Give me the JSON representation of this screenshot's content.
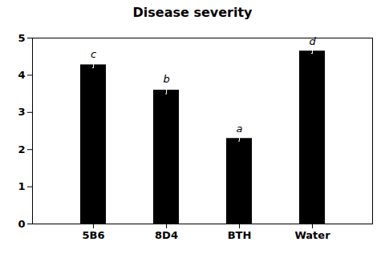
{
  "chart_data": {
    "type": "bar",
    "title": "Disease severity",
    "categories": [
      "5B6",
      "8D4",
      "BTH",
      "Water"
    ],
    "values": [
      4.28,
      3.6,
      2.3,
      4.65
    ],
    "errors": [
      0.08,
      0.1,
      0.07,
      0.06
    ],
    "letters": [
      "c",
      "b",
      "a",
      "d"
    ],
    "color": "#000000",
    "ylim": [
      0,
      5
    ],
    "yticks": [
      0,
      1,
      2,
      3,
      4,
      5
    ],
    "grid": false
  }
}
